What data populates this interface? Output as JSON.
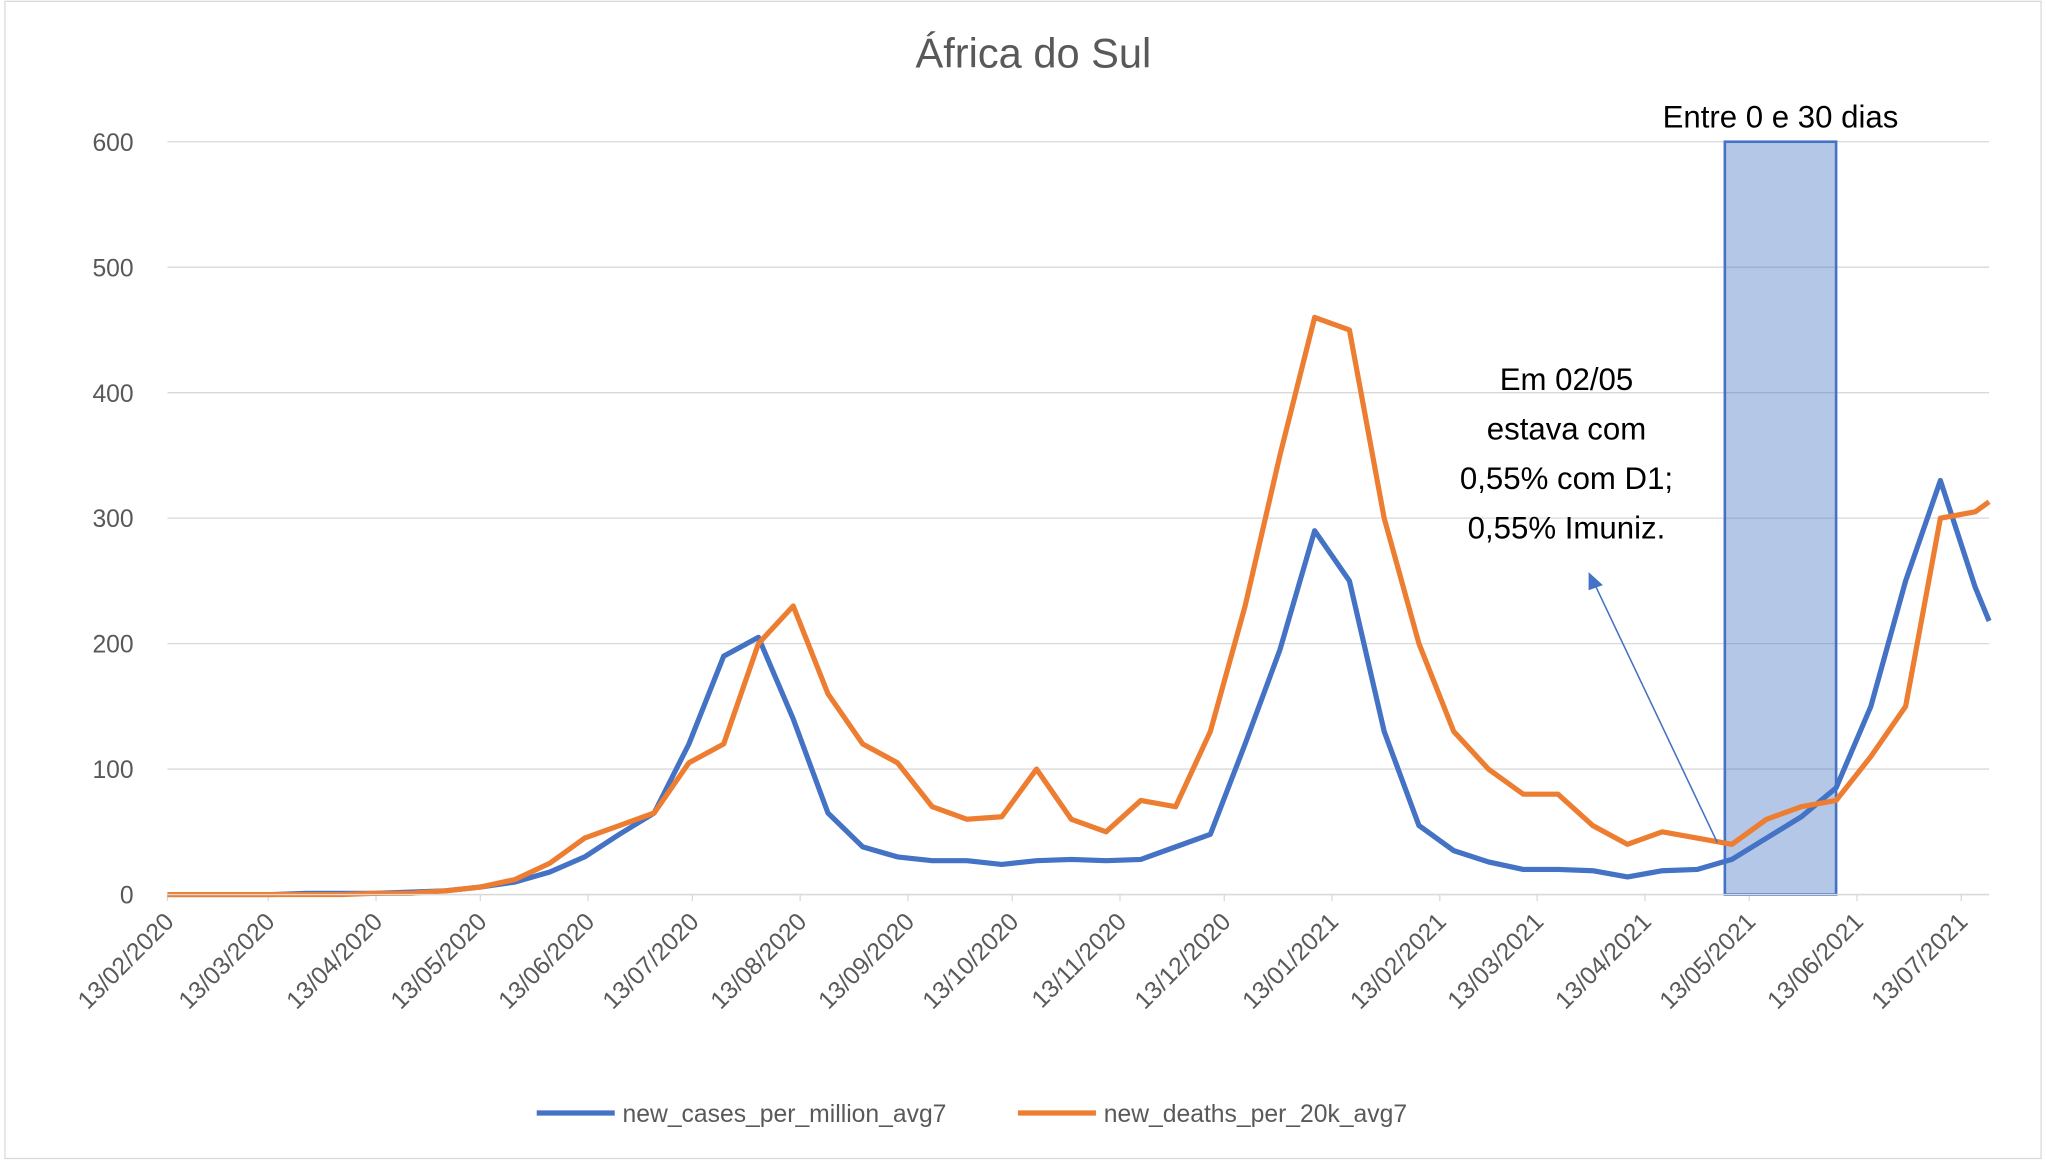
{
  "chart_data": {
    "type": "line",
    "title": "África do Sul",
    "x": [
      "13/02/2020",
      "23/02/2020",
      "04/03/2020",
      "14/03/2020",
      "24/03/2020",
      "03/04/2020",
      "13/04/2020",
      "23/04/2020",
      "03/05/2020",
      "13/05/2020",
      "23/05/2020",
      "02/06/2020",
      "12/06/2020",
      "22/06/2020",
      "02/07/2020",
      "12/07/2020",
      "22/07/2020",
      "01/08/2020",
      "11/08/2020",
      "21/08/2020",
      "31/08/2020",
      "10/09/2020",
      "20/09/2020",
      "30/09/2020",
      "10/10/2020",
      "20/10/2020",
      "30/10/2020",
      "09/11/2020",
      "19/11/2020",
      "29/11/2020",
      "09/12/2020",
      "19/12/2020",
      "29/12/2020",
      "08/01/2021",
      "18/01/2021",
      "28/01/2021",
      "07/02/2021",
      "17/02/2021",
      "27/02/2021",
      "09/03/2021",
      "19/03/2021",
      "29/03/2021",
      "08/04/2021",
      "18/04/2021",
      "28/04/2021",
      "08/05/2021",
      "18/05/2021",
      "28/05/2021",
      "07/06/2021",
      "17/06/2021",
      "27/06/2021",
      "07/07/2021",
      "17/07/2021",
      "21/07/2021"
    ],
    "series": [
      {
        "name": "new_cases_per_million_avg7",
        "color": "#4472c4",
        "values": [
          0,
          0,
          0,
          0,
          1,
          1,
          1,
          2,
          3,
          6,
          10,
          18,
          30,
          48,
          65,
          120,
          190,
          205,
          140,
          65,
          38,
          30,
          27,
          27,
          24,
          27,
          28,
          27,
          28,
          38,
          48,
          120,
          195,
          290,
          250,
          130,
          55,
          35,
          26,
          20,
          20,
          19,
          14,
          19,
          20,
          28,
          45,
          62,
          85,
          150,
          250,
          330,
          245,
          218
        ]
      },
      {
        "name": "new_deaths_per_20k_avg7",
        "color": "#ed7d31",
        "values": [
          0,
          0,
          0,
          0,
          0,
          0,
          1,
          1,
          3,
          6,
          12,
          25,
          45,
          55,
          65,
          105,
          120,
          200,
          230,
          160,
          120,
          105,
          70,
          60,
          62,
          100,
          60,
          50,
          75,
          70,
          130,
          230,
          350,
          460,
          450,
          300,
          200,
          130,
          100,
          80,
          80,
          55,
          40,
          50,
          45,
          40,
          60,
          70,
          75,
          110,
          150,
          300,
          305,
          313
        ]
      }
    ],
    "xlim": [
      "13/02/2020",
      "21/07/2021"
    ],
    "xticks": [
      "13/02/2020",
      "13/03/2020",
      "13/04/2020",
      "13/05/2020",
      "13/06/2020",
      "13/07/2020",
      "13/08/2020",
      "13/09/2020",
      "13/10/2020",
      "13/11/2020",
      "13/12/2020",
      "13/01/2021",
      "13/02/2021",
      "13/03/2021",
      "13/04/2021",
      "13/05/2021",
      "13/06/2021",
      "13/07/2021"
    ],
    "ylim": [
      0,
      600
    ],
    "yticks": [
      0,
      100,
      200,
      300,
      400,
      500,
      600
    ],
    "grid": true,
    "span": {
      "x": [
        "06/05/2021",
        "07/06/2021"
      ],
      "label": "Entre 0 e 30 dias",
      "color": "#4472c4"
    },
    "annotation": [
      "Em 02/05",
      "estava com",
      "0,55% com D1;",
      "0,55% Imuniz."
    ],
    "legend": "bottom"
  }
}
